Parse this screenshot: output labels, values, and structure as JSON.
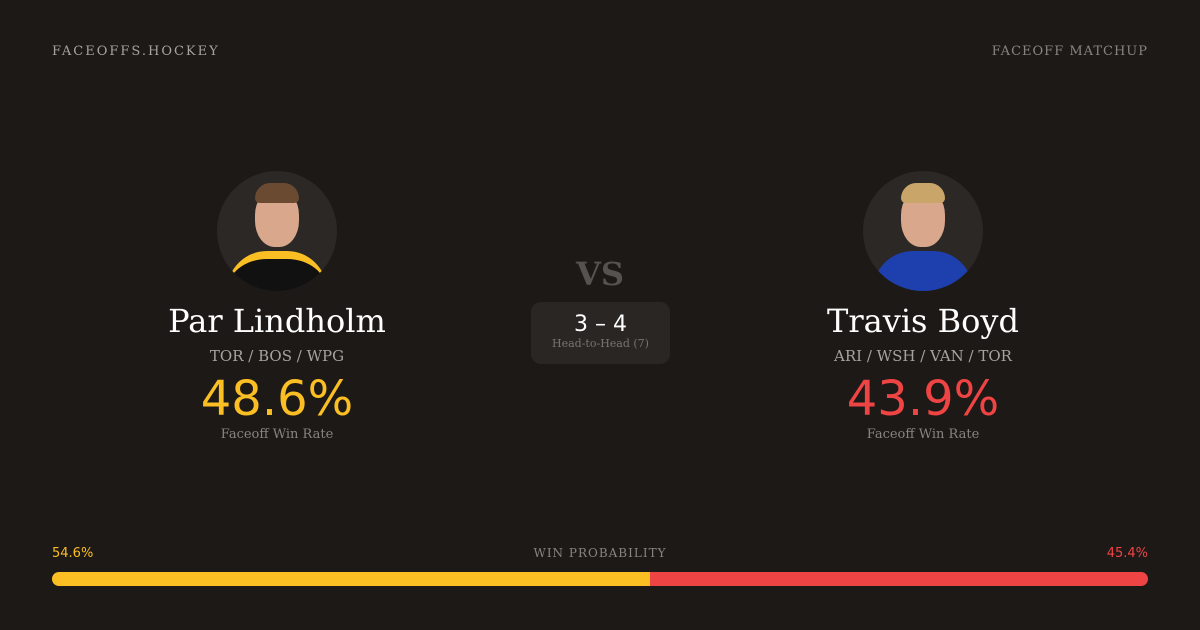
{
  "header": {
    "brand": "FACEOFFS.HOCKEY",
    "tag": "FACEOFF MATCHUP"
  },
  "colors": {
    "left": "#fbbf24",
    "right": "#ef4444"
  },
  "players": [
    {
      "name": "Par Lindholm",
      "teams": "TOR / BOS / WPG",
      "win_rate": "48.6%",
      "win_rate_label": "Faceoff Win Rate",
      "photo": "player-headshot"
    },
    {
      "name": "Travis Boyd",
      "teams": "ARI / WSH / VAN / TOR",
      "win_rate": "43.9%",
      "win_rate_label": "Faceoff Win Rate",
      "photo": "player-headshot"
    }
  ],
  "matchup": {
    "vs": "VS",
    "score": "3 – 4",
    "h2h_label": "Head-to-Head (7)"
  },
  "win_probability": {
    "label": "WIN PROBABILITY",
    "left": "54.6%",
    "right": "45.4%",
    "left_value": 54.6,
    "right_value": 45.4
  }
}
